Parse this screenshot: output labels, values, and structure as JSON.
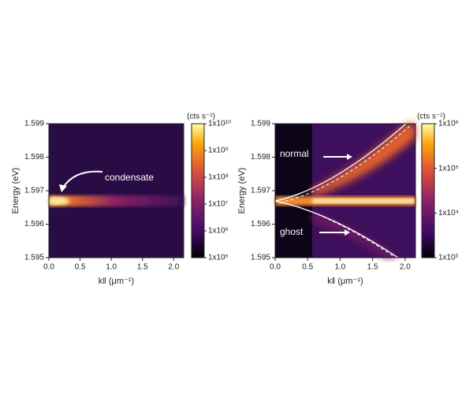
{
  "chart_data": [
    {
      "type": "heatmap",
      "xlabel": "k‖ (μm⁻¹)",
      "ylabel": "Energy (eV)",
      "xlim": [
        0,
        2.16
      ],
      "ylim": [
        1.595,
        1.599
      ],
      "xticks": [
        {
          "value": 0,
          "label": "0.0"
        },
        0.5,
        {
          "value": 1,
          "label": "1.0"
        },
        1.5,
        {
          "value": 2,
          "label": "2.0"
        }
      ],
      "yticks": [
        1.595,
        1.596,
        1.597,
        1.598,
        1.599
      ],
      "colorbar": {
        "label": "(cts s⁻¹)",
        "log": true,
        "lim": [
          100000,
          10000000000
        ],
        "ticks": [
          {
            "value": 100000,
            "label": "1x10⁵"
          },
          {
            "value": 1000000,
            "label": "1x10⁶"
          },
          {
            "value": 10000000,
            "label": "1x10⁷"
          },
          {
            "value": 100000000,
            "label": "1x10⁸"
          },
          {
            "value": 1000000000,
            "label": "1x10⁹"
          },
          {
            "value": 10000000000,
            "label": "1x10¹⁰"
          }
        ]
      },
      "annotations": [
        "condensate"
      ]
    },
    {
      "type": "heatmap",
      "xlabel": "k‖ (μm⁻¹)",
      "ylabel": "Energy (eV)",
      "xlim": [
        0,
        2.16
      ],
      "ylim": [
        1.595,
        1.599
      ],
      "xticks": [
        {
          "value": 0,
          "label": "0.0"
        },
        0.5,
        {
          "value": 1,
          "label": "1.0"
        },
        1.5,
        {
          "value": 2,
          "label": "2.0"
        }
      ],
      "yticks": [
        1.595,
        1.596,
        1.597,
        1.598,
        1.599
      ],
      "colorbar": {
        "label": "(cts s⁻¹)",
        "log": true,
        "lim": [
          1000,
          1000000
        ],
        "ticks": [
          {
            "value": 1000,
            "label": "1x10³"
          },
          {
            "value": 10000,
            "label": "1x10⁴"
          },
          {
            "value": 100000,
            "label": "1x10⁵"
          },
          {
            "value": 1000000,
            "label": "1x10⁶"
          }
        ]
      },
      "annotations": [
        "normal",
        "ghost"
      ]
    }
  ]
}
